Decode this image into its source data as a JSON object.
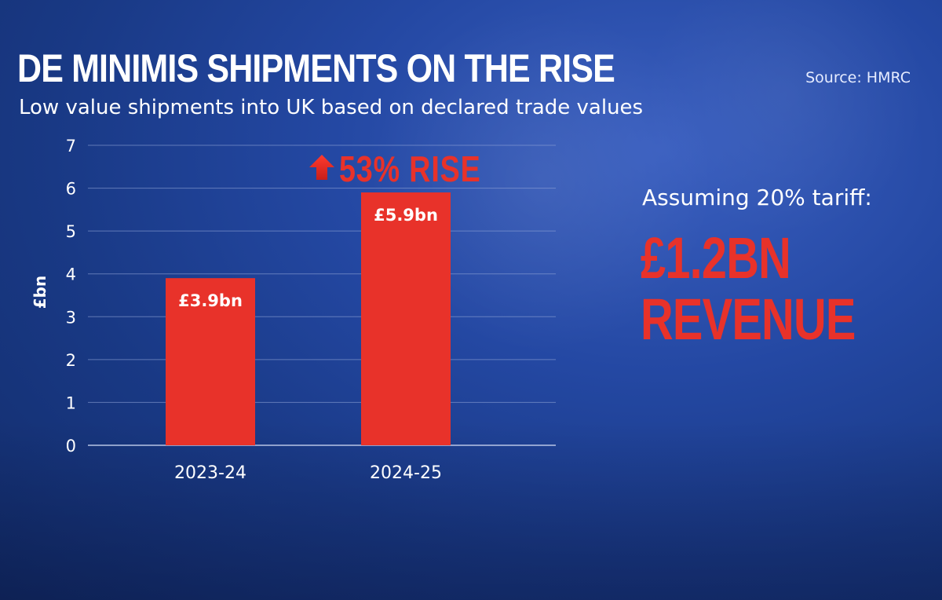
{
  "title": "DE MINIMIS SHIPMENTS ON THE RISE",
  "subtitle": "Low value shipments into UK based on declared trade values",
  "source": "Source: HMRC",
  "rise_label": "53% RISE",
  "note": "Assuming 20% tariff:",
  "revenue_line1": "£1.2BN",
  "revenue_line2": "REVENUE",
  "colors": {
    "bar": "#e8322a",
    "accent": "#e8322a",
    "background": "#1f3f94",
    "grid": "#8fa3d6"
  },
  "chart_data": {
    "type": "bar",
    "categories": [
      "2023-24",
      "2024-25"
    ],
    "values": [
      3.9,
      5.9
    ],
    "data_labels": [
      "£3.9bn",
      "£5.9bn"
    ],
    "ylabel": "£bn",
    "xlabel": "",
    "ylim": [
      0,
      7
    ],
    "yticks": [
      0,
      1,
      2,
      3,
      4,
      5,
      6,
      7
    ],
    "grid": true
  }
}
